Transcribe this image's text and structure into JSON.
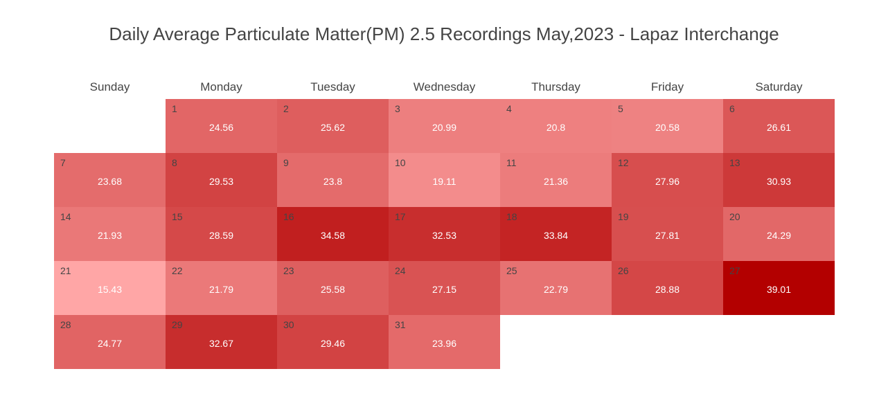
{
  "chart_data": {
    "type": "heatmap",
    "title": "Daily Average Particulate Matter(PM) 2.5 Recordings May,2023 - Lapaz Interchange",
    "weekdays": [
      "Sunday",
      "Monday",
      "Tuesday",
      "Wednesday",
      "Thursday",
      "Friday",
      "Saturday"
    ],
    "first_weekday_index": 1,
    "colorscale": [
      "#ffa6a6",
      "#b30000"
    ],
    "value_range": [
      15.43,
      39.01
    ],
    "days": [
      {
        "day": "1",
        "value": 24.56
      },
      {
        "day": "2",
        "value": 25.62
      },
      {
        "day": "3",
        "value": 20.99
      },
      {
        "day": "4",
        "value": 20.8
      },
      {
        "day": "5",
        "value": 20.58
      },
      {
        "day": "6",
        "value": 26.61
      },
      {
        "day": "7",
        "value": 23.68
      },
      {
        "day": "8",
        "value": 29.53
      },
      {
        "day": "9",
        "value": 23.8
      },
      {
        "day": "10",
        "value": 19.11
      },
      {
        "day": "11",
        "value": 21.36
      },
      {
        "day": "12",
        "value": 27.96
      },
      {
        "day": "13",
        "value": 30.93
      },
      {
        "day": "14",
        "value": 21.93
      },
      {
        "day": "15",
        "value": 28.59
      },
      {
        "day": "16",
        "value": 34.58
      },
      {
        "day": "17",
        "value": 32.53
      },
      {
        "day": "18",
        "value": 33.84
      },
      {
        "day": "19",
        "value": 27.81
      },
      {
        "day": "20",
        "value": 24.29
      },
      {
        "day": "21",
        "value": 15.43
      },
      {
        "day": "22",
        "value": 21.79
      },
      {
        "day": "23",
        "value": 25.58
      },
      {
        "day": "24",
        "value": 27.15
      },
      {
        "day": "25",
        "value": 22.79
      },
      {
        "day": "26",
        "value": 28.88
      },
      {
        "day": "27",
        "value": 39.01
      },
      {
        "day": "28",
        "value": 24.77
      },
      {
        "day": "29",
        "value": 32.67
      },
      {
        "day": "30",
        "value": 29.46
      },
      {
        "day": "31",
        "value": 23.96
      }
    ]
  }
}
